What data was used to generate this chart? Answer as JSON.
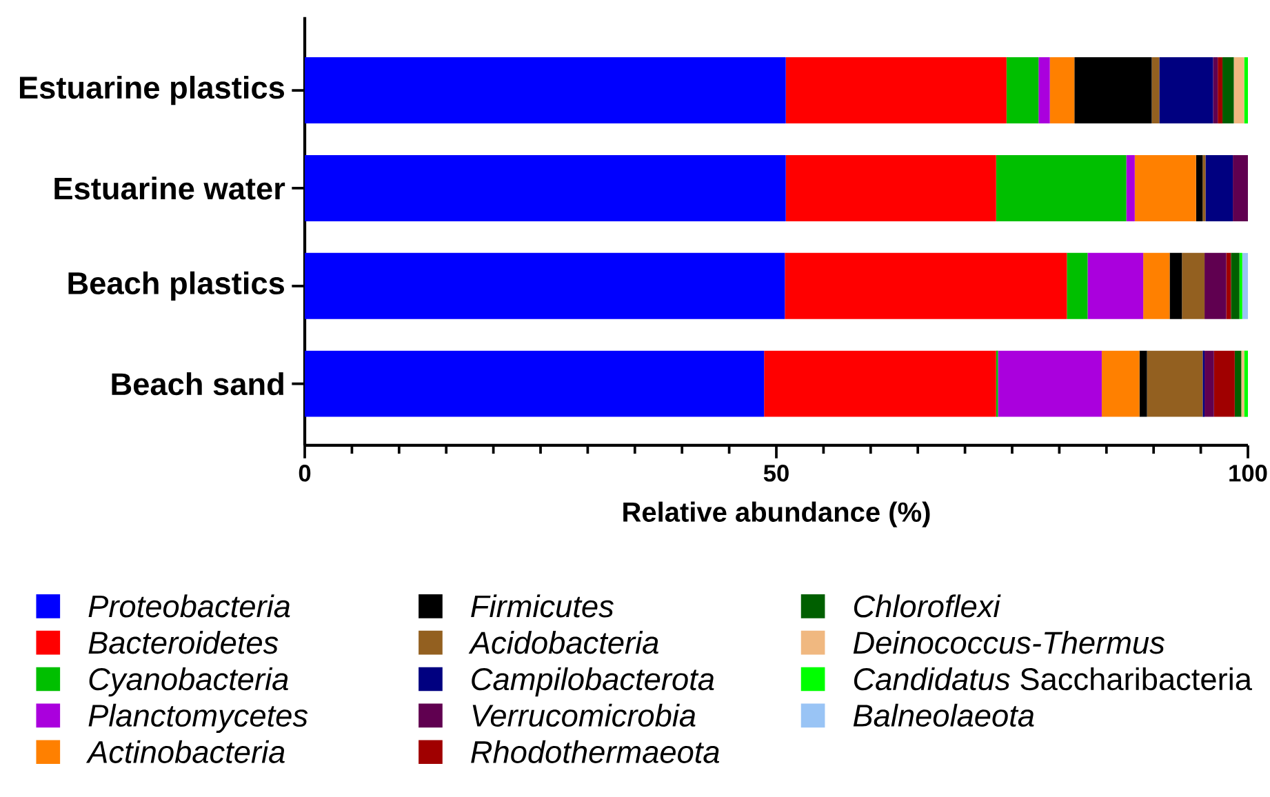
{
  "chart_data": {
    "type": "bar",
    "orientation": "horizontal",
    "stacked": true,
    "legend": "bottom",
    "xlabel": "Relative abundance (%)",
    "xlim": [
      0,
      100
    ],
    "xticks": [
      0,
      50,
      100
    ],
    "categories": [
      "Estuarine plastics",
      "Estuarine water",
      "Beach plastics",
      "Beach sand"
    ],
    "series": [
      {
        "name": "Proteobacteria",
        "color": "#0000ff",
        "values": [
          51.0,
          51.0,
          50.9,
          48.7
        ]
      },
      {
        "name": "Bacteroidetes",
        "color": "#ff0000",
        "values": [
          23.4,
          22.3,
          29.9,
          24.6
        ]
      },
      {
        "name": "Cyanobacteria",
        "color": "#00bf00",
        "values": [
          3.4,
          13.8,
          2.2,
          0.2
        ]
      },
      {
        "name": "Planctomycetes",
        "color": "#aa00dd",
        "values": [
          1.2,
          0.9,
          5.9,
          11.0
        ]
      },
      {
        "name": "Actinobacteria",
        "color": "#ff8000",
        "values": [
          2.6,
          6.5,
          2.8,
          4.0
        ]
      },
      {
        "name": "Firmicutes",
        "color": "#000000",
        "values": [
          8.2,
          0.7,
          1.3,
          0.8
        ]
      },
      {
        "name": "Acidobacteria",
        "color": "#936020",
        "values": [
          0.8,
          0.3,
          2.4,
          5.9
        ]
      },
      {
        "name": "Campilobacterota",
        "color": "#000080",
        "values": [
          5.7,
          2.9,
          0,
          0.2
        ]
      },
      {
        "name": "Verrucomicrobia",
        "color": "#600050",
        "values": [
          0.5,
          1.6,
          2.3,
          1.0
        ]
      },
      {
        "name": "Rhodothermaeota",
        "color": "#a00000",
        "values": [
          0.5,
          0,
          0.5,
          2.2
        ]
      },
      {
        "name": "Chloroflexi",
        "color": "#005f00",
        "values": [
          1.2,
          0,
          0.9,
          0.7
        ]
      },
      {
        "name": "Deinococcus-Thermus",
        "color": "#f0b880",
        "values": [
          1.1,
          0,
          0,
          0.3
        ]
      },
      {
        "name": "*Candidatus* Saccharibacteria",
        "color": "#00ff00",
        "values": [
          0.4,
          0,
          0.3,
          0.4
        ]
      },
      {
        "name": "Balneolaeota",
        "color": "#99c4f5",
        "values": [
          0,
          0,
          0.6,
          0
        ]
      }
    ]
  }
}
